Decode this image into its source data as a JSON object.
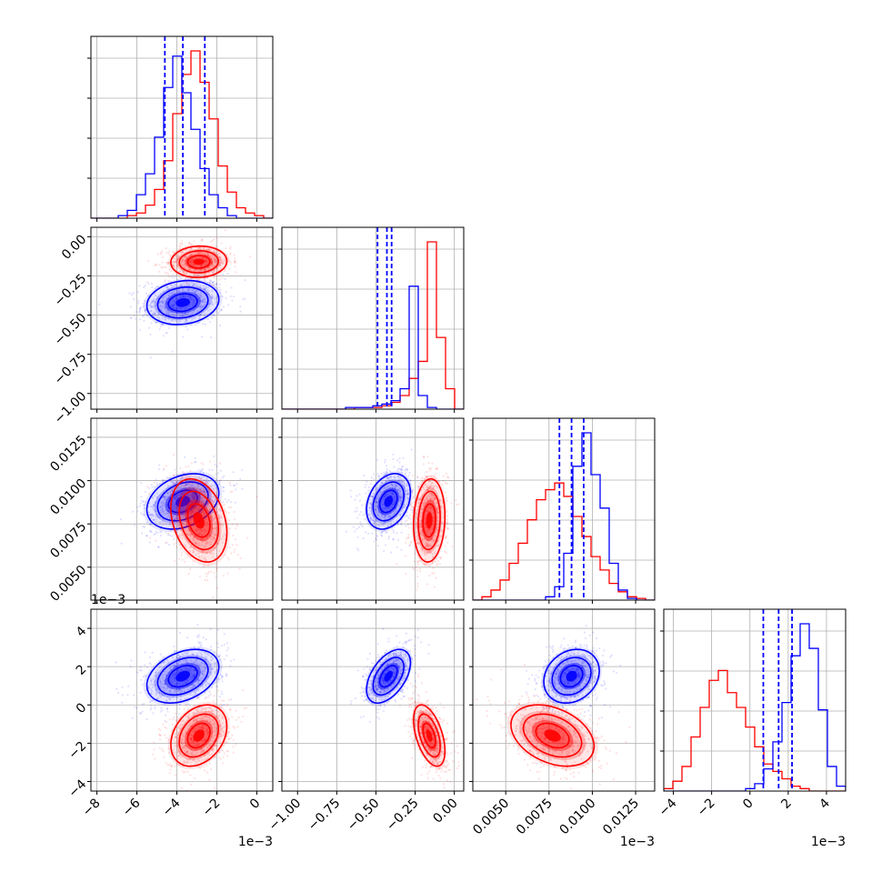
{
  "chart_data": {
    "type": "corner",
    "title": "",
    "parameters": [
      {
        "axis_range": [
          -8.3,
          0.8
        ],
        "ticks": [
          -8,
          -6,
          -4,
          -2,
          0
        ],
        "tick_labels": [
          "−8",
          "−6",
          "−4",
          "−2",
          "0"
        ],
        "offset_label": "1e−3"
      },
      {
        "axis_range": [
          -1.1,
          0.06
        ],
        "ticks": [
          -1.0,
          -0.75,
          -0.5,
          -0.25,
          0.0
        ],
        "tick_labels": [
          "−1.00",
          "−0.75",
          "−0.50",
          "−0.25",
          "0.00"
        ],
        "offset_label": ""
      },
      {
        "axis_range": [
          0.0031,
          0.0136
        ],
        "ticks": [
          0.005,
          0.0075,
          0.01,
          0.0125
        ],
        "tick_labels": [
          "0.0050",
          "0.0075",
          "0.0100",
          "0.0125"
        ],
        "offset_label": "1e−3"
      },
      {
        "axis_range": [
          -4.5,
          5.0
        ],
        "ticks": [
          -4,
          -2,
          0,
          2,
          4
        ],
        "tick_labels": [
          "−4",
          "−2",
          "0",
          "2",
          "4"
        ],
        "offset_label": "1e−3"
      }
    ],
    "series": [
      {
        "color": "#0000ff",
        "mean": [
          -3.7,
          -0.42,
          0.0088,
          1.5
        ],
        "sd": [
          0.9,
          0.07,
          0.0008,
          0.7
        ],
        "quantiles": [
          [
            -4.6,
            -3.7,
            -2.6
          ],
          [
            -0.49,
            -0.43,
            -0.4
          ],
          [
            0.0081,
            0.0088,
            0.0095
          ],
          [
            0.7,
            1.5,
            2.2
          ]
        ],
        "corr": [
          [
            1,
            0.15,
            0.3,
            0.35
          ],
          [
            0.15,
            1,
            0.3,
            0.5
          ],
          [
            0.3,
            0.3,
            1,
            0.2
          ],
          [
            0.35,
            0.5,
            0.2,
            1
          ]
        ],
        "hist": [
          [
            0,
            0,
            0,
            1,
            3,
            9,
            17,
            31,
            50,
            62,
            48,
            34,
            19,
            9,
            4,
            1,
            0,
            0,
            0,
            0
          ],
          [
            0,
            0,
            0,
            0,
            0,
            0,
            0,
            1,
            1,
            1,
            2,
            3,
            5,
            12,
            72,
            8,
            1,
            0,
            0,
            0
          ],
          [
            0,
            0,
            0,
            0,
            0,
            0,
            0,
            0,
            2,
            8,
            28,
            80,
            100,
            75,
            55,
            22,
            6,
            1,
            0,
            0
          ],
          [
            0,
            0,
            0,
            0,
            0,
            0,
            0,
            0,
            0,
            1,
            3,
            9,
            20,
            36,
            55,
            68,
            58,
            33,
            10,
            2
          ]
        ]
      },
      {
        "color": "#ff0000",
        "mean": [
          -2.9,
          -0.16,
          0.0077,
          -1.6
        ],
        "sd": [
          0.7,
          0.05,
          0.0012,
          0.8
        ],
        "quantiles": [],
        "corr": [
          [
            1,
            0.05,
            -0.3,
            0.3
          ],
          [
            0.05,
            1,
            0.1,
            -0.5
          ],
          [
            -0.3,
            0.1,
            1,
            -0.35
          ],
          [
            0.3,
            -0.5,
            -0.35,
            1
          ]
        ],
        "hist": [
          [
            0,
            0,
            0,
            0,
            1,
            2,
            5,
            11,
            22,
            40,
            55,
            64,
            52,
            38,
            20,
            10,
            4,
            2,
            1,
            0
          ],
          [
            0,
            0,
            0,
            0,
            0,
            0,
            0,
            0,
            1,
            1,
            1,
            2,
            4,
            8,
            18,
            28,
            98,
            42,
            12,
            0
          ],
          [
            0,
            2,
            6,
            12,
            22,
            34,
            48,
            60,
            66,
            70,
            62,
            50,
            38,
            26,
            18,
            10,
            5,
            2,
            1,
            0
          ],
          [
            1,
            4,
            10,
            22,
            34,
            45,
            49,
            40,
            34,
            26,
            18,
            11,
            8,
            5,
            2,
            1,
            0,
            0,
            0,
            0
          ]
        ]
      }
    ],
    "grid": true
  }
}
